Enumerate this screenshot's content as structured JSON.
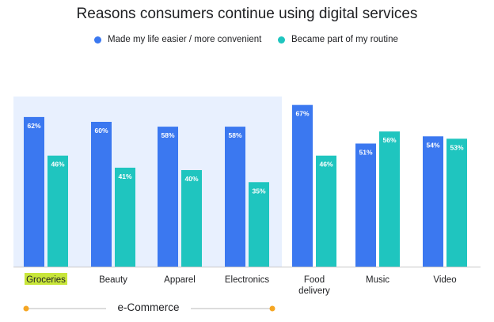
{
  "chart_data": {
    "type": "bar",
    "title": "Reasons consumers continue using digital services",
    "categories": [
      "Groceries",
      "Beauty",
      "Apparel",
      "Electronics",
      "Food delivery",
      "Music",
      "Video"
    ],
    "category_lines": [
      [
        "Groceries"
      ],
      [
        "Beauty"
      ],
      [
        "Apparel"
      ],
      [
        "Electronics"
      ],
      [
        "Food",
        "delivery"
      ],
      [
        "Music"
      ],
      [
        "Video"
      ]
    ],
    "series": [
      {
        "name": "Made my life easier / more convenient",
        "color": "#3b78f0",
        "values": [
          62,
          60,
          58,
          58,
          67,
          51,
          54
        ]
      },
      {
        "name": "Became part of my routine",
        "color": "#1fc5bf",
        "values": [
          46,
          41,
          40,
          35,
          46,
          56,
          53
        ]
      }
    ],
    "value_suffix": "%",
    "ylim": [
      0,
      70
    ],
    "grid": false,
    "legend_position": "top",
    "highlight_category": "Groceries",
    "highlight_color": "#c8e63a",
    "group": {
      "label": "e-Commerce",
      "categories": [
        "Groceries",
        "Beauty",
        "Apparel",
        "Electronics"
      ],
      "shade_color": "#e8f0fe",
      "bracket_color": "#f5a623"
    }
  }
}
